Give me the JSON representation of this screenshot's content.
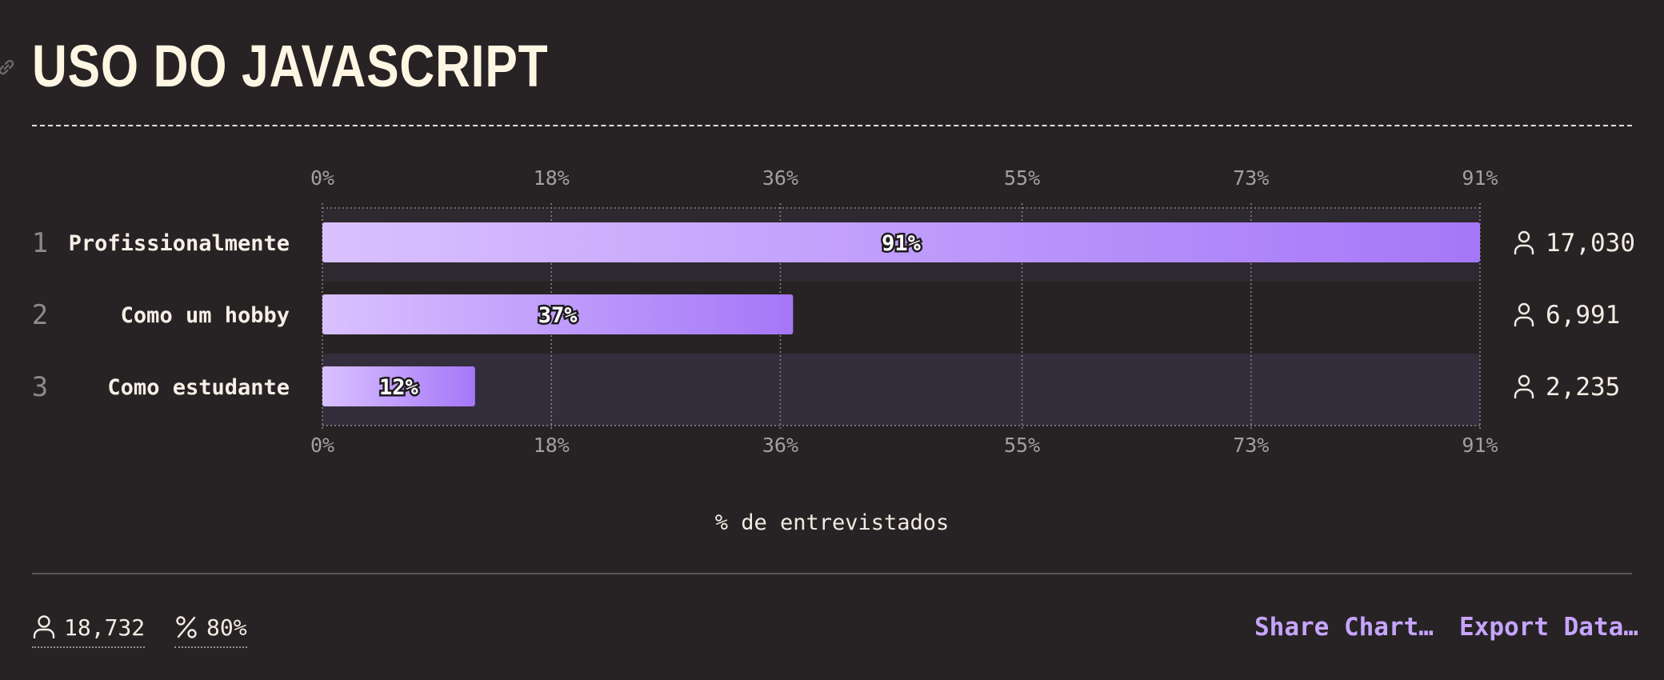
{
  "header": {
    "title": "USO DO JAVASCRIPT"
  },
  "chart_data": {
    "type": "bar",
    "orientation": "horizontal",
    "categories": [
      "Profissionalmente",
      "Como um hobby",
      "Como estudante"
    ],
    "ranks": [
      "1",
      "2",
      "3"
    ],
    "values": [
      91,
      37,
      12
    ],
    "value_labels": [
      "91%",
      "37%",
      "12%"
    ],
    "counts": [
      "17,030",
      "6,991",
      "2,235"
    ],
    "xlim": [
      0,
      91
    ],
    "ticks": [
      0,
      18,
      36,
      55,
      73,
      91
    ],
    "tick_labels": [
      "0%",
      "18%",
      "36%",
      "55%",
      "73%",
      "91%"
    ],
    "xlabel": "% de entrevistados",
    "grid": true
  },
  "footer": {
    "respondents": "18,732",
    "completion": "80%",
    "share_label": "Share Chart…",
    "export_label": "Export Data…"
  },
  "colors": {
    "background": "#272325",
    "bar_start": "#d9c1ff",
    "bar_end": "#a577f8",
    "accent": "#c7a4ff",
    "title": "#fdf6e3"
  },
  "icons": [
    "link-icon",
    "user-icon",
    "percent-icon"
  ]
}
